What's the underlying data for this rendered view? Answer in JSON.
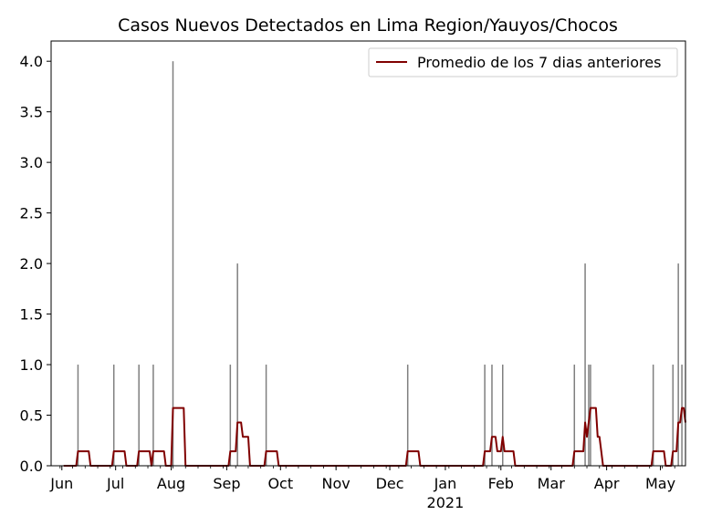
{
  "chart_data": {
    "type": "bar",
    "title": "Casos Nuevos Detectados en Lima Region/Yauyos/Chocos",
    "xlabel": "",
    "ylabel": "",
    "x_range": [
      "2020-05-26",
      "2021-05-15"
    ],
    "ylim": [
      0,
      4.2
    ],
    "y_ticks": [
      0.0,
      0.5,
      1.0,
      1.5,
      2.0,
      2.5,
      3.0,
      3.5,
      4.0
    ],
    "y_tick_labels": [
      "0.0",
      "0.5",
      "1.0",
      "1.5",
      "2.0",
      "2.5",
      "3.0",
      "3.5",
      "4.0"
    ],
    "x_ticks": [
      {
        "date": "2020-06-01",
        "label": "Jun"
      },
      {
        "date": "2020-07-01",
        "label": "Jul"
      },
      {
        "date": "2020-08-01",
        "label": "Aug"
      },
      {
        "date": "2020-09-01",
        "label": "Sep"
      },
      {
        "date": "2020-10-01",
        "label": "Oct"
      },
      {
        "date": "2020-11-01",
        "label": "Nov"
      },
      {
        "date": "2020-12-01",
        "label": "Dec"
      },
      {
        "date": "2021-01-01",
        "label": "Jan",
        "sublabel": "2021"
      },
      {
        "date": "2021-02-01",
        "label": "Feb"
      },
      {
        "date": "2021-03-01",
        "label": "Mar"
      },
      {
        "date": "2021-04-01",
        "label": "Apr"
      },
      {
        "date": "2021-05-01",
        "label": "May"
      }
    ],
    "grid": false,
    "legend_position": "top-right",
    "series": [
      {
        "name": "",
        "type": "bar",
        "color": "#7f7f7f",
        "points": [
          {
            "x": "2020-06-10",
            "y": 1
          },
          {
            "x": "2020-06-30",
            "y": 1
          },
          {
            "x": "2020-07-14",
            "y": 1
          },
          {
            "x": "2020-07-22",
            "y": 1
          },
          {
            "x": "2020-08-02",
            "y": 4
          },
          {
            "x": "2020-09-03",
            "y": 1
          },
          {
            "x": "2020-09-07",
            "y": 2
          },
          {
            "x": "2020-09-23",
            "y": 1
          },
          {
            "x": "2020-12-11",
            "y": 1
          },
          {
            "x": "2021-01-23",
            "y": 1
          },
          {
            "x": "2021-01-27",
            "y": 1
          },
          {
            "x": "2021-02-02",
            "y": 1
          },
          {
            "x": "2021-03-14",
            "y": 1
          },
          {
            "x": "2021-03-20",
            "y": 2
          },
          {
            "x": "2021-03-22",
            "y": 1
          },
          {
            "x": "2021-03-23",
            "y": 1
          },
          {
            "x": "2021-04-27",
            "y": 1
          },
          {
            "x": "2021-05-08",
            "y": 1
          },
          {
            "x": "2021-05-11",
            "y": 2
          },
          {
            "x": "2021-05-13",
            "y": 1
          }
        ]
      },
      {
        "name": "Promedio de los 7 dias anteriores",
        "type": "line",
        "color": "#800000",
        "window_days": 7,
        "x_start": "2020-06-02",
        "x_end": "2021-05-15"
      }
    ]
  }
}
